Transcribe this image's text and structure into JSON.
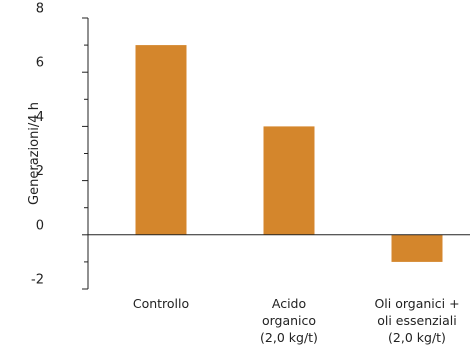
{
  "chart_data": {
    "type": "bar",
    "title": "",
    "xlabel": "",
    "ylabel": "Generazioni/4 h",
    "ylim": [
      -2,
      8
    ],
    "yticks": [
      -2,
      0,
      2,
      4,
      6,
      8
    ],
    "yminor_step": 1,
    "grid": false,
    "categories": [
      [
        "Controllo"
      ],
      [
        "Acido",
        "organico",
        "(2,0 kg/t)"
      ],
      [
        "Oli organici +",
        "oli essenziali",
        "(2,0 kg/t)"
      ]
    ],
    "values": [
      7,
      4,
      -1
    ],
    "bar_color": "#D4862C",
    "axis_color": "#222222",
    "zero_line_color": "#222222"
  }
}
